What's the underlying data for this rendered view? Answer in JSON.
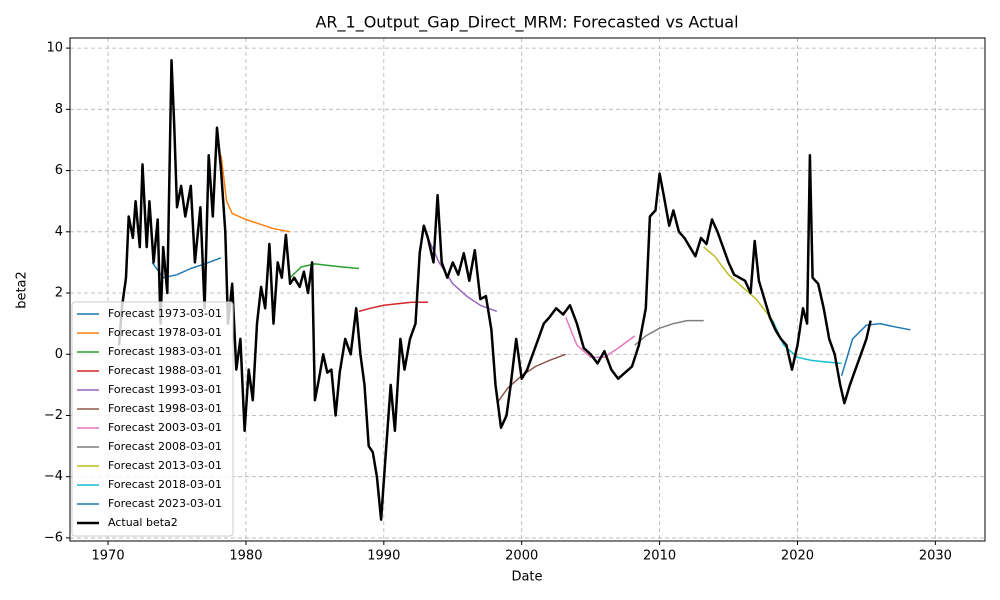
{
  "chart_data": {
    "type": "line",
    "title": "AR_1_Output_Gap_Direct_MRM: Forecasted vs Actual",
    "x_label": "Date",
    "y_label": "beta2",
    "xlim": [
      1967.24,
      2033.6
    ],
    "ylim": [
      -6.1,
      10.33
    ],
    "xticks": [
      1970,
      1980,
      1990,
      2000,
      2010,
      2020,
      2030
    ],
    "yticks": [
      {
        "value": -6,
        "label": "−6"
      },
      {
        "value": -4,
        "label": "−4"
      },
      {
        "value": -2,
        "label": "−2"
      },
      0,
      2,
      4,
      6,
      8,
      10
    ],
    "grid": true,
    "legend": "lower left",
    "series": [
      {
        "name": "Forecast 1973-03-01",
        "color": "#1f77b4",
        "x": [
          1973.2,
          1974,
          1975,
          1976,
          1977,
          1978.2
        ],
        "values": [
          3.0,
          2.5,
          2.6,
          2.8,
          2.95,
          3.15
        ]
      },
      {
        "name": "Forecast 1978-03-01",
        "color": "#ff7f0e",
        "x": [
          1978.2,
          1978.6,
          1979,
          1980,
          1981,
          1982,
          1983.2
        ],
        "values": [
          6.5,
          5.0,
          4.6,
          4.4,
          4.25,
          4.1,
          4.0
        ]
      },
      {
        "name": "Forecast 1983-03-01",
        "color": "#2ca02c",
        "x": [
          1983.2,
          1984,
          1985,
          1986,
          1987,
          1988.2
        ],
        "values": [
          2.5,
          2.85,
          2.95,
          2.9,
          2.85,
          2.8
        ]
      },
      {
        "name": "Forecast 1988-03-01",
        "color": "#d62728",
        "x": [
          1988.2,
          1989,
          1990,
          1991,
          1992,
          1993.2
        ],
        "values": [
          1.4,
          1.5,
          1.6,
          1.65,
          1.7,
          1.7
        ]
      },
      {
        "name": "Forecast 1993-03-01",
        "color": "#9467bd",
        "x": [
          1993.2,
          1994,
          1995,
          1996,
          1997,
          1998.2
        ],
        "values": [
          3.8,
          3.0,
          2.3,
          1.9,
          1.6,
          1.4
        ]
      },
      {
        "name": "Forecast 1998-03-01",
        "color": "#8c564b",
        "x": [
          1998.2,
          1999,
          2000,
          2001,
          2002,
          2003.2
        ],
        "values": [
          -1.6,
          -1.1,
          -0.7,
          -0.4,
          -0.2,
          0.0
        ]
      },
      {
        "name": "Forecast 2003-03-01",
        "color": "#e377c2",
        "x": [
          2003.2,
          2004,
          2005,
          2006,
          2007,
          2008.2
        ],
        "values": [
          1.2,
          0.3,
          -0.1,
          -0.1,
          0.2,
          0.6
        ]
      },
      {
        "name": "Forecast 2008-03-01",
        "color": "#7f7f7f",
        "x": [
          2008.2,
          2009,
          2010,
          2011,
          2012,
          2013.2
        ],
        "values": [
          0.3,
          0.6,
          0.85,
          1.0,
          1.1,
          1.1
        ]
      },
      {
        "name": "Forecast 2013-03-01",
        "color": "#bcbd22",
        "x": [
          2013.2,
          2014,
          2015,
          2016,
          2017,
          2018.2
        ],
        "values": [
          3.5,
          3.2,
          2.6,
          2.2,
          1.8,
          1.1
        ]
      },
      {
        "name": "Forecast 2018-03-01",
        "color": "#17becf",
        "x": [
          2018.2,
          2019,
          2020,
          2021,
          2022,
          2023.2
        ],
        "values": [
          1.1,
          0.3,
          -0.1,
          -0.2,
          -0.25,
          -0.3
        ]
      },
      {
        "name": "Forecast 2023-03-01",
        "color": "#1f77b4",
        "x": [
          2023.2,
          2024,
          2025,
          2026,
          2027,
          2028.2
        ],
        "values": [
          -0.7,
          0.5,
          0.95,
          1.0,
          0.9,
          0.8
        ]
      },
      {
        "name": "Actual beta2",
        "color": "#000000",
        "line_width": 2.5,
        "x": [
          1970.8,
          1971.0,
          1971.3,
          1971.5,
          1971.8,
          1972.0,
          1972.3,
          1972.5,
          1972.8,
          1973.0,
          1973.3,
          1973.6,
          1973.8,
          1974.0,
          1974.3,
          1974.6,
          1974.8,
          1975.0,
          1975.3,
          1975.6,
          1976.0,
          1976.3,
          1976.7,
          1977.0,
          1977.3,
          1977.6,
          1977.9,
          1978.2,
          1978.5,
          1978.7,
          1979.0,
          1979.3,
          1979.6,
          1979.9,
          1980.2,
          1980.5,
          1980.8,
          1981.1,
          1981.4,
          1981.7,
          1982.0,
          1982.3,
          1982.6,
          1982.9,
          1983.2,
          1983.5,
          1983.9,
          1984.2,
          1984.5,
          1984.8,
          1985.0,
          1985.3,
          1985.6,
          1985.9,
          1986.2,
          1986.5,
          1986.8,
          1987.2,
          1987.6,
          1988.0,
          1988.3,
          1988.6,
          1988.9,
          1989.2,
          1989.5,
          1989.8,
          1990.1,
          1990.5,
          1990.8,
          1991.2,
          1991.5,
          1991.9,
          1992.3,
          1992.6,
          1992.9,
          1993.2,
          1993.6,
          1993.9,
          1994.2,
          1994.6,
          1995.0,
          1995.4,
          1995.8,
          1996.2,
          1996.6,
          1997.0,
          1997.4,
          1997.8,
          1998.1,
          1998.5,
          1998.9,
          1999.2,
          1999.6,
          2000.0,
          2000.4,
          2000.8,
          2001.2,
          2001.6,
          2002.0,
          2002.5,
          2003.0,
          2003.5,
          2004.0,
          2004.5,
          2005.0,
          2005.5,
          2006.0,
          2006.5,
          2007.0,
          2007.5,
          2008.0,
          2008.5,
          2009.0,
          2009.3,
          2009.7,
          2010.0,
          2010.3,
          2010.7,
          2011.0,
          2011.4,
          2011.8,
          2012.2,
          2012.6,
          2013.0,
          2013.4,
          2013.8,
          2014.2,
          2014.6,
          2015.0,
          2015.4,
          2015.8,
          2016.2,
          2016.6,
          2016.9,
          2017.2,
          2017.6,
          2018.0,
          2018.4,
          2018.8,
          2019.2,
          2019.6,
          2020.0,
          2020.4,
          2020.7,
          2020.9,
          2021.1,
          2021.5,
          2021.9,
          2022.3,
          2022.7,
          2023.1,
          2023.4,
          2023.8,
          2024.2,
          2024.6,
          2025.0,
          2025.3
        ],
        "values": [
          0.3,
          1.5,
          2.5,
          4.5,
          3.8,
          5.0,
          3.5,
          6.2,
          3.5,
          5.0,
          3.0,
          4.4,
          1.0,
          3.5,
          2.0,
          9.6,
          7.5,
          4.8,
          5.5,
          4.5,
          5.5,
          3.0,
          4.8,
          1.5,
          6.5,
          4.5,
          7.4,
          6.0,
          4.0,
          1.0,
          2.3,
          -0.5,
          0.5,
          -2.5,
          -0.5,
          -1.5,
          1.0,
          2.2,
          1.5,
          3.6,
          1.0,
          3.0,
          2.5,
          3.9,
          2.3,
          2.5,
          2.2,
          2.7,
          2.0,
          3.0,
          -1.5,
          -0.8,
          0.0,
          -0.6,
          -0.5,
          -2.0,
          -0.6,
          0.5,
          0.0,
          1.5,
          0.0,
          -1.0,
          -3.0,
          -3.2,
          -4.0,
          -5.4,
          -3.5,
          -1.0,
          -2.5,
          0.5,
          -0.5,
          0.5,
          1.0,
          3.3,
          4.2,
          3.8,
          3.0,
          5.2,
          3.0,
          2.5,
          3.0,
          2.6,
          3.3,
          2.4,
          3.4,
          1.8,
          1.9,
          0.8,
          -1.0,
          -2.4,
          -2.0,
          -1.0,
          0.5,
          -0.8,
          -0.5,
          0.0,
          0.5,
          1.0,
          1.2,
          1.5,
          1.3,
          1.6,
          1.0,
          0.2,
          0.0,
          -0.3,
          0.1,
          -0.5,
          -0.8,
          -0.6,
          -0.4,
          0.3,
          1.5,
          4.5,
          4.7,
          5.9,
          5.2,
          4.2,
          4.7,
          4.0,
          3.8,
          3.5,
          3.2,
          3.8,
          3.6,
          4.4,
          4.0,
          3.5,
          3.0,
          2.6,
          2.5,
          2.4,
          2.0,
          3.7,
          2.4,
          1.8,
          1.2,
          0.8,
          0.5,
          0.3,
          -0.5,
          0.3,
          1.5,
          1.0,
          6.5,
          2.5,
          2.3,
          1.5,
          0.5,
          0.0,
          -1.0,
          -1.6,
          -1.0,
          -0.5,
          0.0,
          0.5,
          1.1
        ]
      }
    ]
  }
}
